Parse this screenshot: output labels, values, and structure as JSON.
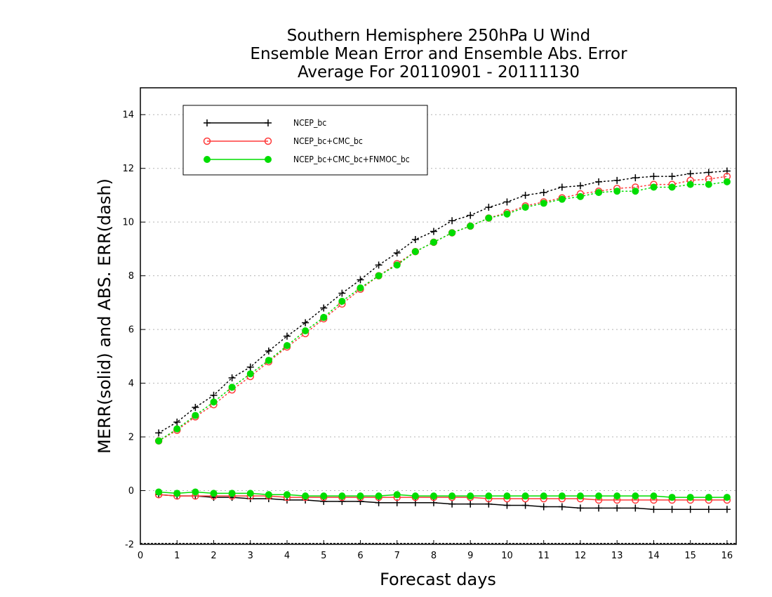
{
  "chart_data": {
    "type": "line",
    "title": [
      "Southern Hemisphere 250hPa U Wind",
      "Ensemble Mean Error and Ensemble Abs. Error",
      "Average For 20110901 - 20111130"
    ],
    "xlabel": "Forecast days",
    "ylabel": "MERR(solid) and ABS. ERR(dash)",
    "xlim": [
      0,
      16.25
    ],
    "ylim": [
      -2,
      15
    ],
    "xticks": [
      0,
      1,
      2,
      3,
      4,
      5,
      6,
      7,
      8,
      9,
      10,
      11,
      12,
      13,
      14,
      15,
      16
    ],
    "yticks": [
      -2,
      0,
      2,
      4,
      6,
      8,
      10,
      12,
      14
    ],
    "grid": "horizontal dotted",
    "legend_position": "top-left",
    "x": [
      0.5,
      1,
      1.5,
      2,
      2.5,
      3,
      3.5,
      4,
      4.5,
      5,
      5.5,
      6,
      6.5,
      7,
      7.5,
      8,
      8.5,
      9,
      9.5,
      10,
      10.5,
      11,
      11.5,
      12,
      12.5,
      13,
      13.5,
      14,
      14.5,
      15,
      15.5,
      16
    ],
    "series": [
      {
        "name": "NCEP_bc",
        "color": "#000000",
        "marker": "plus",
        "abs_err": [
          2.15,
          2.55,
          3.1,
          3.55,
          4.2,
          4.6,
          5.2,
          5.75,
          6.25,
          6.8,
          7.35,
          7.85,
          8.4,
          8.85,
          9.35,
          9.65,
          10.05,
          10.25,
          10.55,
          10.75,
          11.0,
          11.1,
          11.3,
          11.35,
          11.5,
          11.55,
          11.65,
          11.7,
          11.7,
          11.8,
          11.85,
          11.9
        ],
        "merr": [
          -0.15,
          -0.2,
          -0.2,
          -0.25,
          -0.25,
          -0.3,
          -0.3,
          -0.35,
          -0.35,
          -0.4,
          -0.4,
          -0.4,
          -0.45,
          -0.45,
          -0.45,
          -0.45,
          -0.5,
          -0.5,
          -0.5,
          -0.55,
          -0.55,
          -0.6,
          -0.6,
          -0.65,
          -0.65,
          -0.65,
          -0.65,
          -0.7,
          -0.7,
          -0.7,
          -0.7,
          -0.7
        ]
      },
      {
        "name": "NCEP_bc+CMC_bc",
        "color": "#ff3a3a",
        "marker": "open-circle",
        "abs_err": [
          1.85,
          2.25,
          2.75,
          3.2,
          3.75,
          4.25,
          4.8,
          5.35,
          5.85,
          6.4,
          6.95,
          7.5,
          8.0,
          8.45,
          8.9,
          9.25,
          9.6,
          9.85,
          10.15,
          10.35,
          10.6,
          10.75,
          10.9,
          11.05,
          11.15,
          11.25,
          11.3,
          11.4,
          11.4,
          11.55,
          11.6,
          11.7
        ],
        "merr": [
          -0.15,
          -0.2,
          -0.2,
          -0.2,
          -0.2,
          -0.2,
          -0.2,
          -0.25,
          -0.25,
          -0.25,
          -0.25,
          -0.25,
          -0.25,
          -0.25,
          -0.25,
          -0.25,
          -0.25,
          -0.25,
          -0.3,
          -0.3,
          -0.3,
          -0.3,
          -0.3,
          -0.3,
          -0.35,
          -0.35,
          -0.35,
          -0.35,
          -0.35,
          -0.35,
          -0.35,
          -0.35
        ]
      },
      {
        "name": "NCEP_bc+CMC_bc+FNMOC_bc",
        "color": "#00dd00",
        "marker": "filled-circle",
        "abs_err": [
          1.85,
          2.3,
          2.8,
          3.3,
          3.85,
          4.35,
          4.85,
          5.4,
          5.95,
          6.45,
          7.05,
          7.55,
          8.0,
          8.4,
          8.9,
          9.25,
          9.6,
          9.85,
          10.15,
          10.3,
          10.55,
          10.7,
          10.85,
          10.95,
          11.1,
          11.15,
          11.15,
          11.3,
          11.3,
          11.4,
          11.4,
          11.5
        ],
        "merr": [
          -0.05,
          -0.1,
          -0.05,
          -0.1,
          -0.1,
          -0.1,
          -0.15,
          -0.15,
          -0.2,
          -0.2,
          -0.2,
          -0.2,
          -0.2,
          -0.15,
          -0.2,
          -0.2,
          -0.2,
          -0.2,
          -0.2,
          -0.2,
          -0.2,
          -0.2,
          -0.2,
          -0.2,
          -0.2,
          -0.2,
          -0.2,
          -0.2,
          -0.25,
          -0.25,
          -0.25,
          -0.25
        ]
      }
    ]
  }
}
